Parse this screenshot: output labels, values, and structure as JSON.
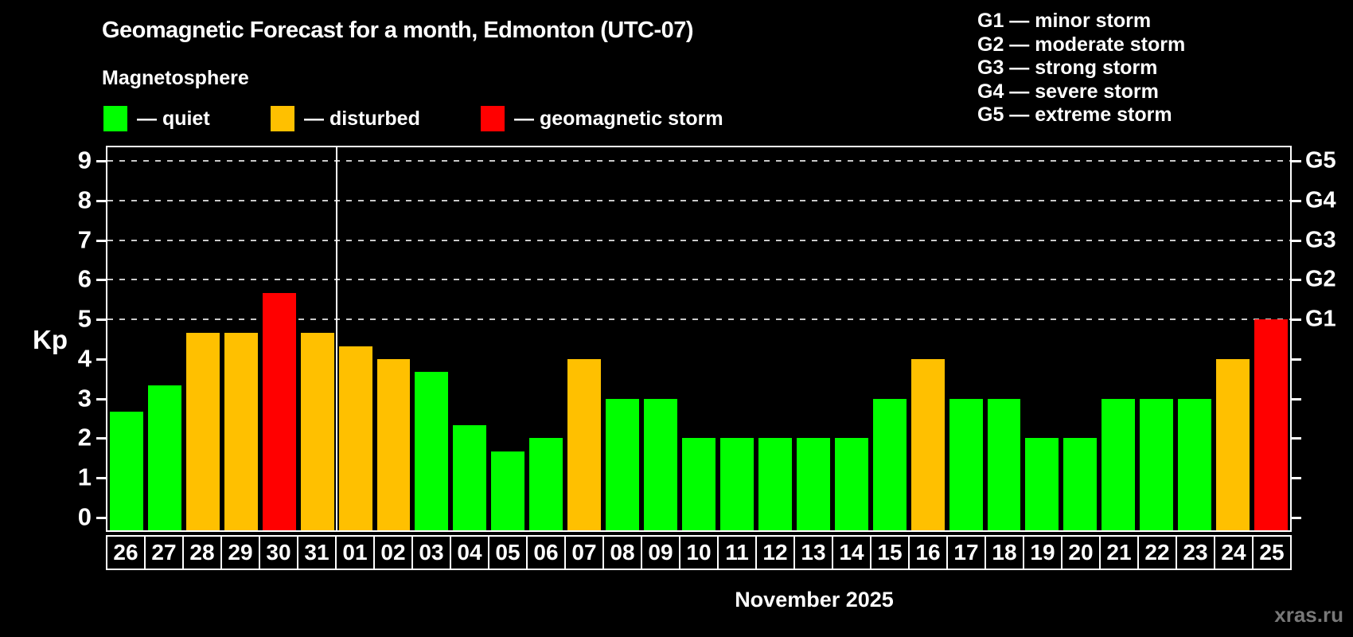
{
  "header": {
    "title": "Geomagnetic Forecast for a month, Edmonton (UTC-07)",
    "subtitle": "Magnetosphere"
  },
  "legend": {
    "items": [
      {
        "label": "— quiet",
        "status": "quiet",
        "color": "#00ff00"
      },
      {
        "label": "— disturbed",
        "status": "disturbed",
        "color": "#ffc000"
      },
      {
        "label": "— geomagnetic storm",
        "status": "storm",
        "color": "#ff0000"
      }
    ]
  },
  "g_scale_legend": {
    "lines": [
      "G1 — minor storm",
      "G2 — moderate storm",
      "G3 — strong storm",
      "G4 — severe storm",
      "G5 — extreme storm"
    ]
  },
  "chart_data": {
    "type": "bar",
    "title": "Geomagnetic Forecast for a month, Edmonton (UTC-07)",
    "ylabel": "Kp",
    "xlabel": "November 2025",
    "ylim": [
      0,
      9.4
    ],
    "y_ticks": [
      0,
      1,
      2,
      3,
      4,
      5,
      6,
      7,
      8,
      9
    ],
    "gridlines_at": [
      5,
      6,
      7,
      8,
      9
    ],
    "grid": "dashed-above-kp5-only",
    "legend_position": "top",
    "right_axis": [
      {
        "kp": 5,
        "label": "G1"
      },
      {
        "kp": 6,
        "label": "G2"
      },
      {
        "kp": 7,
        "label": "G3"
      },
      {
        "kp": 8,
        "label": "G4"
      },
      {
        "kp": 9,
        "label": "G5"
      }
    ],
    "colors": {
      "quiet": "#00ff00",
      "disturbed": "#ffc000",
      "storm": "#ff0000"
    },
    "color_thresholds": {
      "disturbed_min_kp": 4,
      "storm_min_kp": 5
    },
    "month_separator_after_index": 5,
    "categories": [
      "26",
      "27",
      "28",
      "29",
      "30",
      "31",
      "01",
      "02",
      "03",
      "04",
      "05",
      "06",
      "07",
      "08",
      "09",
      "10",
      "11",
      "12",
      "13",
      "14",
      "15",
      "16",
      "17",
      "18",
      "19",
      "20",
      "21",
      "22",
      "23",
      "24",
      "25"
    ],
    "values": [
      2.67,
      3.33,
      4.67,
      4.67,
      5.67,
      4.67,
      4.33,
      4.0,
      3.67,
      2.33,
      1.67,
      2.0,
      4.0,
      3.0,
      3.0,
      2.0,
      2.0,
      2.0,
      2.0,
      2.0,
      3.0,
      4.0,
      3.0,
      3.0,
      2.0,
      2.0,
      3.0,
      3.0,
      3.0,
      4.0,
      5.0
    ]
  },
  "footer": {
    "month_label": "November 2025",
    "watermark": "xras.ru"
  }
}
